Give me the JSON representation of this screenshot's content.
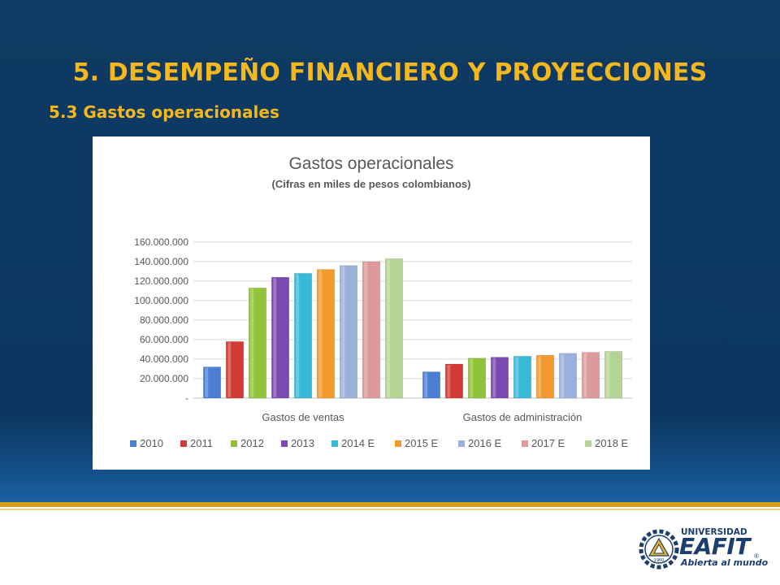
{
  "slide": {
    "title": "5. DESEMPEÑO FINANCIERO Y PROYECCIONES",
    "subtitle": "5.3 Gastos operacionales"
  },
  "logo": {
    "line1": "UNIVERSIDAD",
    "line2": "EAFIT",
    "tagline": "Abierta al mundo",
    "registered": "®",
    "seal_year": "1960"
  },
  "colors": {
    "background": "#0e3a63",
    "title": "#f4b81c",
    "accent_rule": "#d8a01a"
  },
  "chart_data": {
    "type": "bar",
    "title": "Gastos operacionales",
    "subtitle": "(Cifras en miles de pesos colombianos)",
    "categories": [
      "Gastos de ventas",
      "Gastos de administración"
    ],
    "y_ticks": [
      "-",
      "20.000.000",
      "40.000.000",
      "60.000.000",
      "80.000.000",
      "100.000.000",
      "120.000.000",
      "140.000.000",
      "160.000.000"
    ],
    "ylim": [
      0,
      160000000
    ],
    "grid": true,
    "legend_position": "bottom",
    "series": [
      {
        "name": "2010",
        "color": "#4a7fd4",
        "values": [
          32000000,
          27000000
        ]
      },
      {
        "name": "2011",
        "color": "#d23a36",
        "values": [
          58000000,
          35000000
        ]
      },
      {
        "name": "2012",
        "color": "#8fc43a",
        "values": [
          113000000,
          41000000
        ]
      },
      {
        "name": "2013",
        "color": "#7a4ab0",
        "values": [
          124000000,
          42000000
        ]
      },
      {
        "name": "2014 E",
        "color": "#3ab8d8",
        "values": [
          128000000,
          43000000
        ]
      },
      {
        "name": "2015 E",
        "color": "#f29a2e",
        "values": [
          132000000,
          44000000
        ]
      },
      {
        "name": "2016 E",
        "color": "#9cb0dc",
        "values": [
          136000000,
          46000000
        ]
      },
      {
        "name": "2017 E",
        "color": "#de9a99",
        "values": [
          140000000,
          47000000
        ]
      },
      {
        "name": "2018 E",
        "color": "#b4d496",
        "values": [
          143000000,
          48000000
        ]
      }
    ]
  }
}
